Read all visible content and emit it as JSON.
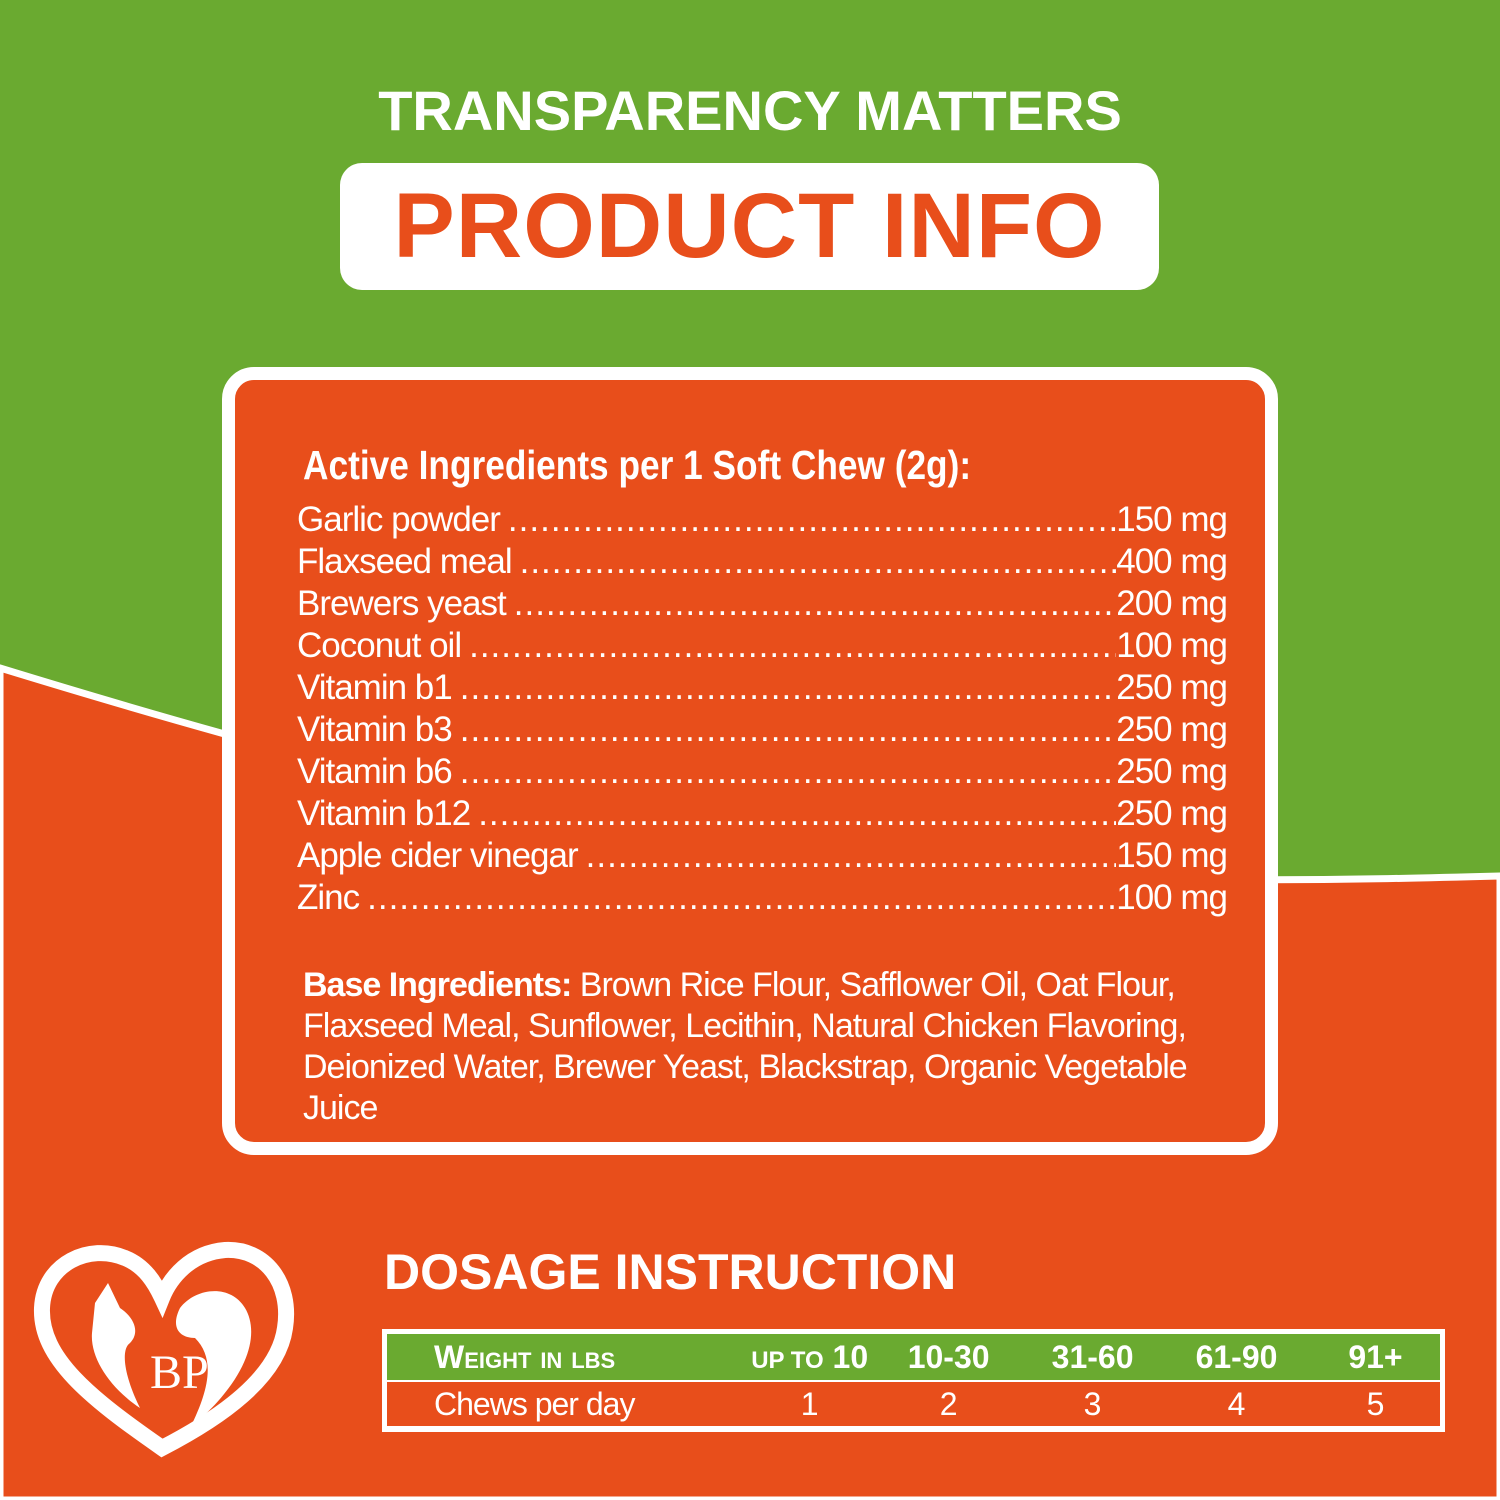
{
  "colors": {
    "green": "#6aaa30",
    "orange": "#e84e1b",
    "white": "#ffffff"
  },
  "header": {
    "kicker": "TRANSPARENCY MATTERS",
    "title": "PRODUCT INFO"
  },
  "active": {
    "title": "Active Ingredients per 1 Soft Chew (2g):",
    "items": [
      {
        "name": "Garlic powder",
        "amount": "150 mg"
      },
      {
        "name": "Flaxseed meal",
        "amount": "400 mg"
      },
      {
        "name": "Brewers yeast",
        "amount": "200 mg"
      },
      {
        "name": "Coconut oil",
        "amount": "100 mg"
      },
      {
        "name": "Vitamin b1",
        "amount": "250 mg"
      },
      {
        "name": "Vitamin b3",
        "amount": "250 mg"
      },
      {
        "name": "Vitamin b6",
        "amount": "250 mg"
      },
      {
        "name": "Vitamin b12",
        "amount": "250 mg"
      },
      {
        "name": "Apple cider vinegar",
        "amount": "150 mg"
      },
      {
        "name": "Zinc",
        "amount": "100 mg"
      }
    ]
  },
  "base": {
    "label": "Base Ingredients:",
    "text": "Brown Rice Flour, Safflower Oil, Oat Flour, Flaxseed Meal, Sunflower, Lecithin, Natural Chicken Flavoring, Deionized Water, Brewer Yeast, Blackstrap, Organic Vegetable Juice"
  },
  "dosage": {
    "title": "DOSAGE INSTRUCTION",
    "header_label": "Weight in lbs",
    "first_prefix": "up to",
    "weights": [
      "10",
      "10-30",
      "31-60",
      "61-90",
      "91+"
    ],
    "row_label": "Chews per day",
    "chews": [
      "1",
      "2",
      "3",
      "4",
      "5"
    ]
  },
  "logo": {
    "text": "BP",
    "icon": "heart-cat-dog-logo"
  }
}
